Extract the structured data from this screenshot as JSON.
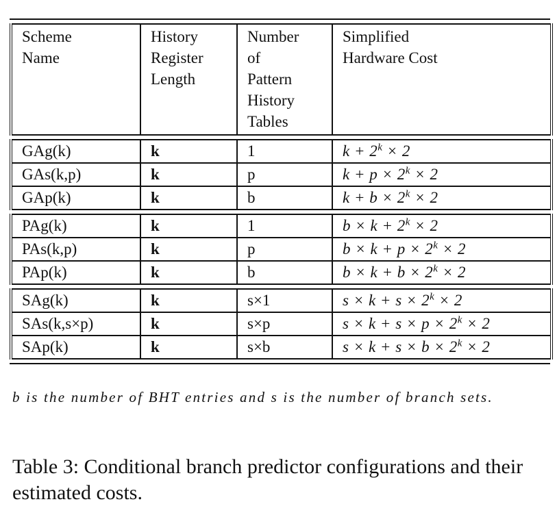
{
  "table": {
    "headers": [
      [
        "Scheme",
        "Name"
      ],
      [
        "History",
        "Register",
        "Length"
      ],
      [
        "Number",
        "of",
        "Pattern",
        "History",
        "Tables"
      ],
      [
        "Simplified",
        "Hardware Cost"
      ]
    ],
    "groups": [
      {
        "rows": [
          {
            "scheme": "GAg(k)",
            "length": "k",
            "tables": "1",
            "cost": "k + 2^k × 2"
          },
          {
            "scheme": "GAs(k,p)",
            "length": "k",
            "tables": "p",
            "cost": "k + p × 2^k × 2"
          },
          {
            "scheme": "GAp(k)",
            "length": "k",
            "tables": "b",
            "cost": "k + b × 2^k × 2"
          }
        ]
      },
      {
        "rows": [
          {
            "scheme": "PAg(k)",
            "length": "k",
            "tables": "1",
            "cost": "b × k + 2^k × 2"
          },
          {
            "scheme": "PAs(k,p)",
            "length": "k",
            "tables": "p",
            "cost": "b × k + p × 2^k × 2"
          },
          {
            "scheme": "PAp(k)",
            "length": "k",
            "tables": "b",
            "cost": "b × k + b × 2^k × 2"
          }
        ]
      },
      {
        "rows": [
          {
            "scheme": "SAg(k)",
            "length": "k",
            "tables": "s×1",
            "cost": "s × k + s × 2^k × 2"
          },
          {
            "scheme": "SAs(k,s×p)",
            "length": "k",
            "tables": "s×p",
            "cost": "s × k + s × p × 2^k × 2"
          },
          {
            "scheme": "SAp(k)",
            "length": "k",
            "tables": "s×b",
            "cost": "s × k + s × b × 2^k × 2"
          }
        ]
      }
    ]
  },
  "note": "b is the number of BHT entries and s is the number of branch sets.",
  "caption": "Table 3: Conditional branch predictor configurations and their estimated costs."
}
